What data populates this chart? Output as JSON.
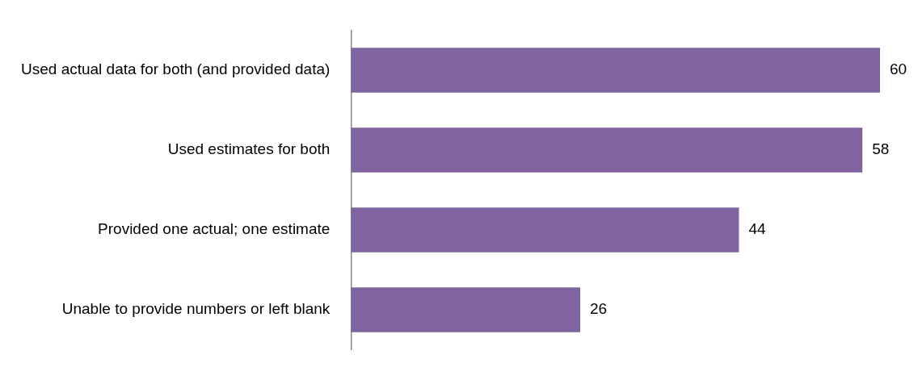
{
  "chart_data": {
    "type": "bar",
    "orientation": "horizontal",
    "categories": [
      "Used actual data for both (and provided data)",
      "Used estimates for both",
      "Provided one actual; one estimate",
      "Unable to provide numbers or left blank"
    ],
    "values": [
      60,
      58,
      44,
      26
    ],
    "color": "#8064a2",
    "data_labels": true,
    "legend": false
  }
}
